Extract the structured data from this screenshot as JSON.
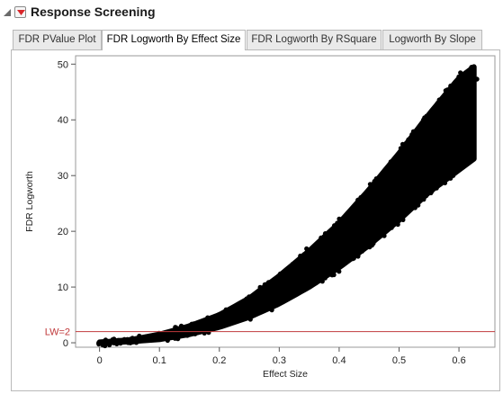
{
  "report": {
    "title": "Response Screening"
  },
  "tabs": [
    {
      "label": "FDR PValue Plot",
      "active": false
    },
    {
      "label": "FDR Logworth By Effect Size",
      "active": true
    },
    {
      "label": "FDR Logworth By RSquare",
      "active": false
    },
    {
      "label": "Logworth By Slope",
      "active": false
    }
  ],
  "colors": {
    "accent": "#d9262a",
    "reference_line": "#c0393b",
    "points": "#000000"
  },
  "chart_data": {
    "type": "scatter",
    "xlabel": "Effect Size",
    "ylabel": "FDR Logworth",
    "xlim": [
      -0.04,
      0.66
    ],
    "ylim": [
      -0.8,
      51.5
    ],
    "x_ticks": [
      "0",
      "0.1",
      "0.2",
      "0.3",
      "0.4",
      "0.5",
      "0.6"
    ],
    "x_tick_values": [
      0,
      0.1,
      0.2,
      0.3,
      0.4,
      0.5,
      0.6
    ],
    "y_ticks": [
      "0",
      "10",
      "20",
      "30",
      "40",
      "50"
    ],
    "y_tick_values": [
      0,
      10,
      20,
      30,
      40,
      50
    ],
    "grid": false,
    "reference_line": {
      "y": 2,
      "label": "LW=2"
    },
    "band": {
      "x": [
        0,
        0.05,
        0.1,
        0.15,
        0.2,
        0.25,
        0.3,
        0.35,
        0.4,
        0.45,
        0.5,
        0.55,
        0.6,
        0.625
      ],
      "y_upper": [
        0.1,
        0.5,
        1.5,
        3.0,
        5.0,
        8.0,
        12.0,
        16.5,
        21.5,
        27.5,
        34.0,
        41.0,
        47.5,
        49.5
      ],
      "y_lower": [
        0.0,
        0.2,
        0.6,
        1.5,
        2.8,
        4.6,
        7.0,
        10.0,
        13.5,
        17.5,
        22.0,
        27.0,
        31.0,
        33.0
      ]
    },
    "outliers": [
      {
        "x": 0.63,
        "y": 47.3
      },
      {
        "x": 0.615,
        "y": 44.8
      },
      {
        "x": 0.6,
        "y": 41.5
      },
      {
        "x": 0.625,
        "y": 39.0
      },
      {
        "x": 0.615,
        "y": 37.6
      },
      {
        "x": 0.58,
        "y": 35.0
      },
      {
        "x": 0.563,
        "y": 31.8
      },
      {
        "x": 0.529,
        "y": 28.0
      },
      {
        "x": 0.473,
        "y": 25.5
      },
      {
        "x": 0.545,
        "y": 30.2
      },
      {
        "x": 0.612,
        "y": 43.0
      }
    ]
  }
}
